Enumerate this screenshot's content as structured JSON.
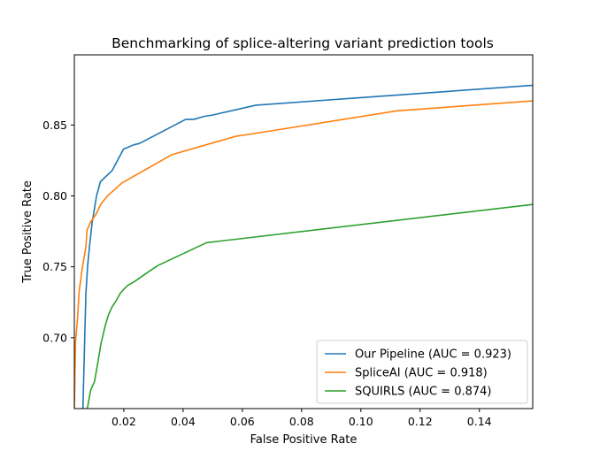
{
  "chart_data": {
    "type": "line",
    "title": "Benchmarking of splice-altering variant prediction tools",
    "xlabel": "False Positive Rate",
    "ylabel": "True Positive Rate",
    "xlim": [
      0.0033,
      0.158
    ],
    "ylim": [
      0.65,
      0.8995
    ],
    "xticks": [
      0.02,
      0.04,
      0.06,
      0.08,
      0.1,
      0.12,
      0.14
    ],
    "xtick_labels": [
      "0.02",
      "0.04",
      "0.06",
      "0.08",
      "0.10",
      "0.12",
      "0.14"
    ],
    "yticks": [
      0.7,
      0.75,
      0.8,
      0.85
    ],
    "ytick_labels": [
      "0.70",
      "0.75",
      "0.80",
      "0.85"
    ],
    "grid": false,
    "legend_position": "lower-right",
    "series": [
      {
        "name": "Our Pipeline (AUC = 0.923)",
        "color": "#1f77b4",
        "x": [
          0.0062,
          0.0066,
          0.0072,
          0.0078,
          0.0085,
          0.0093,
          0.0108,
          0.0121,
          0.0161,
          0.0199,
          0.0233,
          0.0253,
          0.0409,
          0.0437,
          0.0469,
          0.0499,
          0.0646,
          0.158
        ],
        "y": [
          0.65,
          0.683,
          0.731,
          0.751,
          0.766,
          0.781,
          0.8,
          0.81,
          0.818,
          0.833,
          0.836,
          0.837,
          0.854,
          0.854,
          0.856,
          0.857,
          0.864,
          0.878
        ]
      },
      {
        "name": "SpliceAI (AUC = 0.918)",
        "color": "#ff7f0e",
        "x": [
          0.0033,
          0.0037,
          0.0044,
          0.0049,
          0.0059,
          0.0072,
          0.0076,
          0.0089,
          0.0106,
          0.0122,
          0.0145,
          0.0193,
          0.0361,
          0.0577,
          0.064,
          0.1122,
          0.158
        ],
        "y": [
          0.65,
          0.697,
          0.714,
          0.732,
          0.748,
          0.764,
          0.776,
          0.782,
          0.787,
          0.794,
          0.8,
          0.809,
          0.829,
          0.842,
          0.844,
          0.86,
          0.867
        ]
      },
      {
        "name": "SQUIRLS (AUC = 0.874)",
        "color": "#2ca02c",
        "x": [
          0.0077,
          0.0088,
          0.0101,
          0.0112,
          0.0123,
          0.0138,
          0.0148,
          0.0161,
          0.0174,
          0.0187,
          0.0199,
          0.0214,
          0.0239,
          0.0273,
          0.0301,
          0.0316,
          0.0479,
          0.158
        ],
        "y": [
          0.65,
          0.663,
          0.669,
          0.682,
          0.696,
          0.709,
          0.716,
          0.722,
          0.726,
          0.731,
          0.734,
          0.737,
          0.74,
          0.745,
          0.749,
          0.751,
          0.767,
          0.794
        ]
      }
    ]
  }
}
